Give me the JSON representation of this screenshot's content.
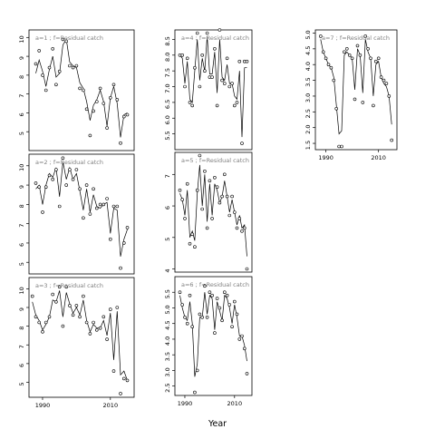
{
  "figure": {
    "xlabel": "Year"
  },
  "chart_data": [
    {
      "type": "line",
      "panel": "a=1",
      "title": "a=1 ; f=Residual catch",
      "xlim": [
        1986,
        2017
      ],
      "ylim": [
        4.0,
        10.4
      ],
      "yticks": [
        5,
        6,
        7,
        8,
        9,
        10
      ],
      "xticks": [],
      "xticklabels": [],
      "series": [
        {
          "role": "observed points",
          "x": [
            1988,
            1989,
            1990,
            1991,
            1992,
            1993,
            1994,
            1995,
            1996,
            1997,
            1998,
            1999,
            2000,
            2001,
            2002,
            2003,
            2004,
            2005,
            2006,
            2007,
            2008,
            2009,
            2010,
            2011,
            2012,
            2013,
            2014,
            2015
          ],
          "y": [
            8.6,
            9.3,
            8.0,
            7.2,
            8.4,
            9.4,
            7.5,
            8.2,
            9.9,
            9.8,
            8.5,
            8.4,
            8.5,
            7.3,
            7.2,
            6.2,
            4.8,
            6.1,
            6.6,
            7.3,
            6.5,
            5.2,
            6.8,
            7.5,
            6.7,
            4.4,
            5.8,
            5.9
          ]
        },
        {
          "role": "fitted line",
          "x": [
            1988,
            1989,
            1990,
            1991,
            1992,
            1993,
            1994,
            1995,
            1996,
            1997,
            1998,
            1999,
            2000,
            2001,
            2002,
            2003,
            2004,
            2005,
            2006,
            2007,
            2008,
            2009,
            2010,
            2011,
            2012,
            2013,
            2014,
            2015
          ],
          "y": [
            8.1,
            8.8,
            8.2,
            7.4,
            8.3,
            9.0,
            7.9,
            8.1,
            9.6,
            9.9,
            8.7,
            8.5,
            8.4,
            7.6,
            7.3,
            6.6,
            5.6,
            6.4,
            6.7,
            7.2,
            6.6,
            5.3,
            6.8,
            7.4,
            6.5,
            4.7,
            5.9,
            6.0
          ]
        }
      ]
    },
    {
      "type": "line",
      "panel": "a=2",
      "title": "a=2 ; f=Residual catch",
      "xlim": [
        1986,
        2017
      ],
      "ylim": [
        4.4,
        10.6
      ],
      "yticks": [
        5,
        6,
        7,
        8,
        9,
        10
      ],
      "xticks": [],
      "xticklabels": [],
      "series": [
        {
          "role": "observed points",
          "x": [
            1988,
            1989,
            1990,
            1991,
            1992,
            1993,
            1994,
            1995,
            1996,
            1997,
            1998,
            1999,
            2000,
            2001,
            2002,
            2003,
            2004,
            2005,
            2006,
            2007,
            2008,
            2009,
            2010,
            2011,
            2012,
            2013,
            2014,
            2015
          ],
          "y": [
            9.1,
            8.9,
            7.6,
            8.9,
            9.5,
            9.3,
            9.8,
            7.9,
            10.4,
            9.0,
            9.8,
            9.3,
            9.8,
            8.8,
            7.3,
            9.0,
            7.5,
            8.8,
            7.8,
            8.0,
            8.0,
            8.3,
            6.2,
            7.9,
            7.9,
            4.7,
            6.0,
            6.8
          ]
        },
        {
          "role": "fitted line",
          "x": [
            1988,
            1989,
            1990,
            1991,
            1992,
            1993,
            1994,
            1995,
            1996,
            1997,
            1998,
            1999,
            2000,
            2001,
            2002,
            2003,
            2004,
            2005,
            2006,
            2007,
            2008,
            2009,
            2010,
            2011,
            2012,
            2013,
            2014,
            2015
          ],
          "y": [
            8.8,
            9.0,
            8.0,
            9.0,
            9.6,
            9.4,
            9.9,
            8.4,
            10.2,
            9.3,
            9.9,
            9.3,
            9.6,
            8.7,
            7.7,
            8.8,
            7.6,
            8.5,
            7.9,
            7.8,
            8.0,
            8.1,
            6.5,
            7.8,
            7.7,
            5.3,
            6.2,
            6.7
          ]
        }
      ]
    },
    {
      "type": "line",
      "panel": "a=3",
      "title": "a=3 ; f=Residual catch",
      "xlim": [
        1986,
        2017
      ],
      "ylim": [
        4.2,
        10.6
      ],
      "yticks": [
        5,
        6,
        7,
        8,
        9,
        10
      ],
      "xticks": [
        1990,
        2010
      ],
      "xticklabels": [
        "1990",
        "2010"
      ],
      "series": [
        {
          "role": "observed points",
          "x": [
            1987,
            1988,
            1989,
            1990,
            1991,
            1992,
            1993,
            1994,
            1995,
            1996,
            1997,
            1998,
            1999,
            2000,
            2001,
            2002,
            2003,
            2004,
            2005,
            2006,
            2007,
            2008,
            2009,
            2010,
            2011,
            2012,
            2013,
            2014,
            2015
          ],
          "y": [
            9.6,
            8.5,
            8.2,
            7.7,
            8.2,
            8.5,
            9.7,
            9.3,
            10.1,
            8.0,
            10.1,
            9.1,
            8.6,
            9.1,
            8.5,
            9.6,
            8.2,
            7.6,
            8.2,
            7.8,
            7.9,
            8.5,
            7.3,
            8.9,
            5.6,
            9.0,
            4.4,
            5.2,
            5.1
          ]
        },
        {
          "role": "fitted line",
          "x": [
            1987,
            1988,
            1989,
            1990,
            1991,
            1992,
            1993,
            1994,
            1995,
            1996,
            1997,
            1998,
            1999,
            2000,
            2001,
            2002,
            2003,
            2004,
            2005,
            2006,
            2007,
            2008,
            2009,
            2010,
            2011,
            2012,
            2013,
            2014,
            2015
          ],
          "y": [
            9.3,
            8.6,
            8.3,
            7.8,
            8.1,
            8.5,
            9.4,
            9.3,
            9.9,
            8.5,
            9.8,
            9.2,
            8.7,
            9.0,
            8.6,
            9.4,
            8.3,
            7.7,
            8.1,
            7.9,
            7.9,
            8.3,
            7.5,
            8.7,
            6.2,
            8.8,
            5.4,
            5.6,
            5.1
          ]
        }
      ]
    },
    {
      "type": "line",
      "panel": "a=4",
      "title": "a=4 ; f=Residual catch",
      "xlim": [
        1986,
        2017
      ],
      "ylim": [
        5.0,
        8.8
      ],
      "yticks": [
        5.5,
        6.0,
        6.5,
        7.0,
        7.5,
        8.0,
        8.5
      ],
      "xticks": [],
      "xticklabels": [],
      "series": [
        {
          "role": "observed points",
          "x": [
            1988,
            1989,
            1990,
            1991,
            1992,
            1993,
            1994,
            1995,
            1996,
            1997,
            1998,
            1999,
            2000,
            2001,
            2002,
            2003,
            2004,
            2005,
            2006,
            2007,
            2008,
            2009,
            2010,
            2011,
            2012,
            2013,
            2014,
            2015
          ],
          "y": [
            8.0,
            8.0,
            7.0,
            7.9,
            6.5,
            6.4,
            7.6,
            8.7,
            7.0,
            8.0,
            7.5,
            8.7,
            7.3,
            7.3,
            8.2,
            6.4,
            8.8,
            7.2,
            7.1,
            7.9,
            7.0,
            7.1,
            6.4,
            6.5,
            7.8,
            5.2,
            7.8,
            7.8
          ]
        },
        {
          "role": "fitted line",
          "x": [
            1988,
            1989,
            1990,
            1991,
            1992,
            1993,
            1994,
            1995,
            1996,
            1997,
            1998,
            1999,
            2000,
            2001,
            2002,
            2003,
            2004,
            2005,
            2006,
            2007,
            2008,
            2009,
            2010,
            2011,
            2012,
            2013,
            2014,
            2015
          ],
          "y": [
            8.0,
            7.9,
            7.1,
            7.8,
            6.6,
            6.5,
            7.5,
            8.5,
            7.2,
            7.9,
            7.5,
            8.6,
            7.4,
            7.4,
            8.1,
            6.8,
            8.5,
            7.3,
            7.2,
            7.7,
            7.1,
            7.1,
            6.7,
            6.6,
            7.5,
            5.4,
            7.6,
            7.6
          ]
        }
      ]
    },
    {
      "type": "line",
      "panel": "a=5",
      "title": "a=5 ; f=Residual catch",
      "xlim": [
        1986,
        2017
      ],
      "ylim": [
        3.9,
        7.7
      ],
      "yticks": [
        4,
        5,
        6,
        7
      ],
      "xticks": [],
      "xticklabels": [],
      "series": [
        {
          "role": "observed points",
          "x": [
            1988,
            1989,
            1990,
            1991,
            1992,
            1993,
            1994,
            1995,
            1996,
            1997,
            1998,
            1999,
            2000,
            2001,
            2002,
            2003,
            2004,
            2005,
            2006,
            2007,
            2008,
            2009,
            2010,
            2011,
            2012,
            2013,
            2014,
            2015
          ],
          "y": [
            6.5,
            6.2,
            5.6,
            6.7,
            4.8,
            5.1,
            4.7,
            6.5,
            7.6,
            5.9,
            7.1,
            5.3,
            6.8,
            5.6,
            6.9,
            6.6,
            6.1,
            6.3,
            7.0,
            6.3,
            5.7,
            6.3,
            5.8,
            5.3,
            5.6,
            5.2,
            5.3,
            4.0
          ]
        },
        {
          "role": "fitted line",
          "x": [
            1988,
            1989,
            1990,
            1991,
            1992,
            1993,
            1994,
            1995,
            1996,
            1997,
            1998,
            1999,
            2000,
            2001,
            2002,
            2003,
            2004,
            2005,
            2006,
            2007,
            2008,
            2009,
            2010,
            2011,
            2012,
            2013,
            2014,
            2015
          ],
          "y": [
            6.4,
            6.2,
            5.7,
            6.5,
            5.0,
            5.2,
            4.9,
            6.4,
            7.3,
            6.0,
            7.0,
            5.5,
            6.7,
            5.7,
            6.7,
            6.5,
            6.1,
            6.3,
            6.8,
            6.3,
            5.8,
            6.2,
            5.8,
            5.4,
            5.7,
            5.3,
            5.4,
            4.4
          ]
        }
      ]
    },
    {
      "type": "line",
      "panel": "a=6",
      "title": "a=6 ; f=Residual catch",
      "xlim": [
        1986,
        2017
      ],
      "ylim": [
        2.2,
        6.0
      ],
      "yticks": [
        2.5,
        3.0,
        3.5,
        4.0,
        4.5,
        5.0,
        5.5
      ],
      "xticks": [
        1990,
        2010
      ],
      "xticklabels": [
        "1990",
        "2010"
      ],
      "series": [
        {
          "role": "observed points",
          "x": [
            1988,
            1989,
            1990,
            1991,
            1992,
            1993,
            1994,
            1995,
            1996,
            1997,
            1998,
            1999,
            2000,
            2001,
            2002,
            2003,
            2004,
            2005,
            2006,
            2007,
            2008,
            2009,
            2010,
            2011,
            2012,
            2013,
            2014,
            2015
          ],
          "y": [
            5.5,
            5.1,
            4.7,
            4.5,
            5.4,
            4.4,
            2.3,
            3.0,
            4.8,
            4.7,
            5.7,
            4.7,
            5.5,
            5.4,
            4.2,
            5.3,
            5.0,
            4.6,
            5.5,
            5.4,
            5.1,
            4.4,
            5.2,
            4.8,
            4.0,
            4.1,
            3.7,
            2.9
          ]
        },
        {
          "role": "fitted line",
          "x": [
            1988,
            1989,
            1990,
            1991,
            1992,
            1993,
            1994,
            1995,
            1996,
            1997,
            1998,
            1999,
            2000,
            2001,
            2002,
            2003,
            2004,
            2005,
            2006,
            2007,
            2008,
            2009,
            2010,
            2011,
            2012,
            2013,
            2014,
            2015
          ],
          "y": [
            5.4,
            5.0,
            4.7,
            4.6,
            5.2,
            4.5,
            2.8,
            3.2,
            4.7,
            4.7,
            5.5,
            4.8,
            5.4,
            5.3,
            4.3,
            5.2,
            4.9,
            4.6,
            5.4,
            5.3,
            5.0,
            4.5,
            5.1,
            4.7,
            4.1,
            4.1,
            3.8,
            3.3
          ]
        }
      ]
    },
    {
      "type": "line",
      "panel": "a=7",
      "title": "a=7 ; f=Residual catch",
      "xlim": [
        1986,
        2017
      ],
      "ylim": [
        1.3,
        5.1
      ],
      "yticks": [
        1.5,
        2.0,
        2.5,
        3.0,
        3.5,
        4.0,
        4.5,
        5.0
      ],
      "xticks": [
        1990,
        2010
      ],
      "xticklabels": [
        "1990",
        "2010"
      ],
      "series": [
        {
          "role": "observed points",
          "x": [
            1988,
            1989,
            1990,
            1991,
            1992,
            1993,
            1994,
            1995,
            1996,
            1997,
            1998,
            1999,
            2000,
            2001,
            2002,
            2003,
            2004,
            2005,
            2006,
            2007,
            2008,
            2009,
            2010,
            2011,
            2012,
            2013,
            2014,
            2015
          ],
          "y": [
            4.9,
            4.4,
            4.2,
            4.0,
            3.9,
            3.5,
            2.6,
            1.4,
            1.4,
            4.4,
            4.5,
            4.3,
            4.2,
            2.9,
            4.6,
            4.3,
            2.8,
            4.9,
            4.5,
            4.2,
            2.7,
            4.1,
            4.2,
            3.6,
            3.5,
            3.4,
            3.0,
            1.6
          ]
        },
        {
          "role": "fitted line",
          "x": [
            1988,
            1989,
            1990,
            1991,
            1992,
            1993,
            1994,
            1995,
            1996,
            1997,
            1998,
            1999,
            2000,
            2001,
            2002,
            2003,
            2004,
            2005,
            2006,
            2007,
            2008,
            2009,
            2010,
            2011,
            2012,
            2013,
            2014,
            2015
          ],
          "y": [
            4.8,
            4.4,
            4.2,
            4.0,
            3.9,
            3.6,
            2.7,
            1.8,
            1.9,
            4.3,
            4.4,
            4.3,
            4.2,
            3.2,
            4.5,
            4.3,
            3.1,
            4.8,
            4.4,
            4.2,
            3.0,
            4.0,
            4.1,
            3.6,
            3.4,
            3.3,
            3.0,
            2.1
          ]
        }
      ]
    }
  ]
}
